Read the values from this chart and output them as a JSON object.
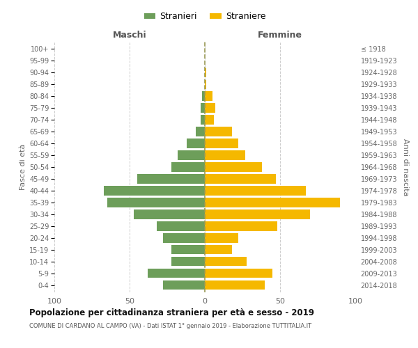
{
  "age_groups_bottom_to_top": [
    "0-4",
    "5-9",
    "10-14",
    "15-19",
    "20-24",
    "25-29",
    "30-34",
    "35-39",
    "40-44",
    "45-49",
    "50-54",
    "55-59",
    "60-64",
    "65-69",
    "70-74",
    "75-79",
    "80-84",
    "85-89",
    "90-94",
    "95-99",
    "100+"
  ],
  "birth_years_bottom_to_top": [
    "2014-2018",
    "2009-2013",
    "2004-2008",
    "1999-2003",
    "1994-1998",
    "1989-1993",
    "1984-1988",
    "1979-1983",
    "1974-1978",
    "1969-1973",
    "1964-1968",
    "1959-1963",
    "1954-1958",
    "1949-1953",
    "1944-1948",
    "1939-1943",
    "1934-1938",
    "1929-1933",
    "1924-1928",
    "1919-1923",
    "≤ 1918"
  ],
  "maschi_bottom_to_top": [
    28,
    38,
    22,
    22,
    28,
    32,
    47,
    65,
    67,
    45,
    22,
    18,
    12,
    6,
    3,
    3,
    2,
    0,
    0,
    0,
    0
  ],
  "femmine_bottom_to_top": [
    40,
    45,
    28,
    18,
    22,
    48,
    70,
    90,
    67,
    47,
    38,
    27,
    22,
    18,
    6,
    7,
    5,
    1,
    1,
    0,
    0
  ],
  "maschi_color": "#6d9e5a",
  "femmine_color": "#f5b800",
  "dashed_color": "#999955",
  "grid_color": "#cccccc",
  "title": "Popolazione per cittadinanza straniera per età e sesso - 2019",
  "subtitle": "COMUNE DI CARDANO AL CAMPO (VA) - Dati ISTAT 1° gennaio 2019 - Elaborazione TUTTITALIA.IT",
  "header_left": "Maschi",
  "header_right": "Femmine",
  "ylabel_left": "Fasce di età",
  "ylabel_right": "Anni di nascita",
  "legend_maschi": "Stranieri",
  "legend_femmine": "Straniere",
  "xlim": 100
}
